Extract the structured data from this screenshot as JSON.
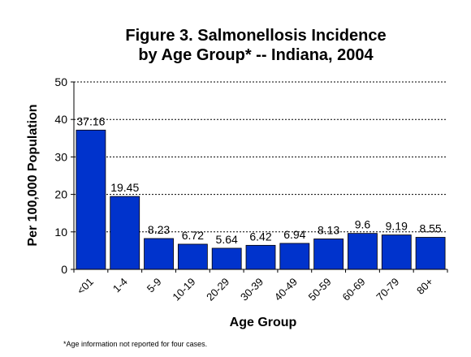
{
  "chart_data": {
    "type": "bar",
    "title_line1": "Figure 3. Salmonellosis Incidence",
    "title_line2": "by Age Group* -- Indiana, 2004",
    "xlabel": "Age Group",
    "ylabel": "Per 100,000 Population",
    "categories": [
      "<01",
      "1-4",
      "5-9",
      "10-19",
      "20-29",
      "30-39",
      "40-49",
      "50-59",
      "60-69",
      "70-79",
      "80+"
    ],
    "values": [
      37.16,
      19.45,
      8.23,
      6.72,
      5.64,
      6.42,
      6.94,
      8.13,
      9.6,
      9.19,
      8.55
    ],
    "value_labels": [
      "37.16",
      "19.45",
      "8.23",
      "6.72",
      "5.64",
      "6.42",
      "6.94",
      "8.13",
      "9.6",
      "9.19",
      "8.55"
    ],
    "ylim": [
      0,
      50
    ],
    "yticks": [
      0,
      10,
      20,
      30,
      40,
      50
    ],
    "grid": true,
    "bar_color": "#0033cc",
    "footnote": "*Age information not reported for four cases."
  }
}
